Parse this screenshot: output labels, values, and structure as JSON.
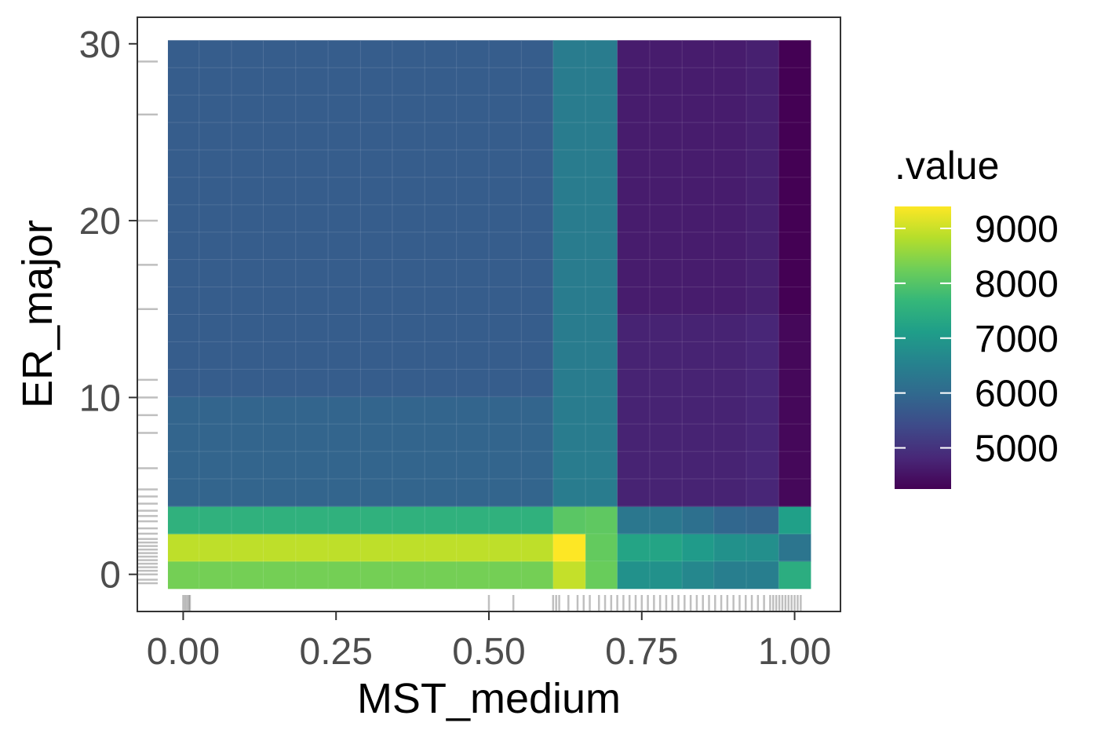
{
  "chart_data": {
    "type": "heatmap",
    "xlabel": "MST_medium",
    "ylabel": "ER_major",
    "xlim": [
      -0.075,
      1.075
    ],
    "ylim": [
      -2.1,
      31.5
    ],
    "x_ticks": [
      0,
      0.25,
      0.5,
      0.75,
      1
    ],
    "x_tick_labels": [
      "0.00",
      "0.25",
      "0.50",
      "0.75",
      "1.00"
    ],
    "y_ticks": [
      0,
      10,
      20,
      30
    ],
    "y_tick_labels": [
      "0",
      "10",
      "20",
      "30"
    ],
    "x_breaks": [
      -0.025,
      0.026,
      0.079,
      0.131,
      0.184,
      0.237,
      0.29,
      0.342,
      0.395,
      0.447,
      0.5,
      0.553,
      0.605,
      0.658,
      0.71,
      0.763,
      0.816,
      0.868,
      0.921,
      0.974,
      1.026
    ],
    "y_breaks": [
      -0.8,
      0.75,
      2.3,
      3.85,
      5.4,
      6.95,
      8.5,
      10.05,
      11.6,
      13.15,
      14.7,
      16.25,
      17.8,
      19.35,
      20.9,
      22.45,
      24.0,
      25.55,
      27.1,
      28.65,
      30.2
    ],
    "x_zones": [
      {
        "from": 0,
        "to": 12,
        "values": [
          8300,
          8900,
          7550,
          5900,
          5900,
          5900,
          5900,
          5750,
          5750,
          5750,
          5750,
          5750,
          5750,
          5750,
          5750,
          5750,
          5750,
          5750,
          5750,
          5750
        ]
      },
      {
        "from": 12,
        "to": 13,
        "values": [
          8950,
          9400,
          8050,
          6400,
          6400,
          6400,
          6400,
          6400,
          6400,
          6400,
          6400,
          6400,
          6400,
          6400,
          6400,
          6400,
          6400,
          6400,
          6400,
          6400
        ]
      },
      {
        "from": 13,
        "to": 14,
        "values": [
          8200,
          8150,
          8100,
          6400,
          6400,
          6400,
          6400,
          6400,
          6400,
          6400,
          6400,
          6400,
          6400,
          6400,
          6400,
          6400,
          6400,
          6400,
          6400,
          6400
        ]
      },
      {
        "from": 14,
        "to": 16,
        "values": [
          6850,
          7250,
          6300,
          4750,
          4750,
          4750,
          4750,
          4750,
          4750,
          4750,
          4650,
          4650,
          4650,
          4650,
          4650,
          4650,
          4650,
          4650,
          4650,
          4650
        ]
      },
      {
        "from": 16,
        "to": 17,
        "values": [
          6650,
          7050,
          6150,
          4750,
          4750,
          4750,
          4750,
          4750,
          4750,
          4750,
          4650,
          4650,
          4650,
          4650,
          4650,
          4650,
          4650,
          4650,
          4650,
          4650
        ]
      },
      {
        "from": 17,
        "to": 18,
        "values": [
          6450,
          6850,
          5950,
          4750,
          4750,
          4750,
          4750,
          4750,
          4750,
          4750,
          4650,
          4650,
          4650,
          4650,
          4650,
          4650,
          4650,
          4650,
          4650,
          4650
        ]
      },
      {
        "from": 18,
        "to": 19,
        "values": [
          6450,
          6800,
          5900,
          4800,
          4800,
          4800,
          4800,
          4800,
          4800,
          4800,
          4700,
          4700,
          4700,
          4700,
          4700,
          4700,
          4700,
          4700,
          4700,
          4700
        ]
      },
      {
        "from": 19,
        "to": 20,
        "values": [
          7450,
          6250,
          7150,
          4350,
          4350,
          4350,
          4350,
          4350,
          4350,
          4350,
          4250,
          4250,
          4250,
          4250,
          4250,
          4250,
          4250,
          4250,
          4250,
          4250
        ]
      }
    ],
    "rug_x": [
      0.0,
      0.003,
      0.006,
      0.009,
      0.011,
      0.5,
      0.54,
      0.605,
      0.61,
      0.615,
      0.63,
      0.645,
      0.655,
      0.665,
      0.68,
      0.69,
      0.7,
      0.71,
      0.72,
      0.73,
      0.74,
      0.75,
      0.76,
      0.77,
      0.78,
      0.79,
      0.8,
      0.81,
      0.82,
      0.83,
      0.84,
      0.85,
      0.86,
      0.87,
      0.88,
      0.89,
      0.9,
      0.91,
      0.92,
      0.93,
      0.94,
      0.95,
      0.96,
      0.965,
      0.97,
      0.975,
      0.98,
      0.985,
      0.99,
      0.995,
      1.0,
      1.005,
      1.01
    ],
    "rug_y": [
      -0.5,
      -0.3,
      0.0,
      0.2,
      0.4,
      0.6,
      0.8,
      1.0,
      1.2,
      1.4,
      1.6,
      1.8,
      2.0,
      2.3,
      2.6,
      3.0,
      3.3,
      3.6,
      4.0,
      4.4,
      4.8,
      6.0,
      8.0,
      9.0,
      10.0,
      11.0,
      15.0,
      17.5,
      20.0,
      26.0,
      29.0
    ],
    "legend": {
      "title": ".value",
      "placement": "right",
      "min": 4250,
      "max": 9400,
      "breaks": [
        5000,
        6000,
        7000,
        8000,
        9000
      ],
      "labels": [
        "5000",
        "6000",
        "7000",
        "8000",
        "9000"
      ]
    },
    "palette": [
      "#440154",
      "#482878",
      "#3e4a89",
      "#31688e",
      "#26828e",
      "#1f9e89",
      "#35b779",
      "#6ece58",
      "#b5de2b",
      "#fde725"
    ],
    "grid": true,
    "panel_border_color": "#333333"
  }
}
